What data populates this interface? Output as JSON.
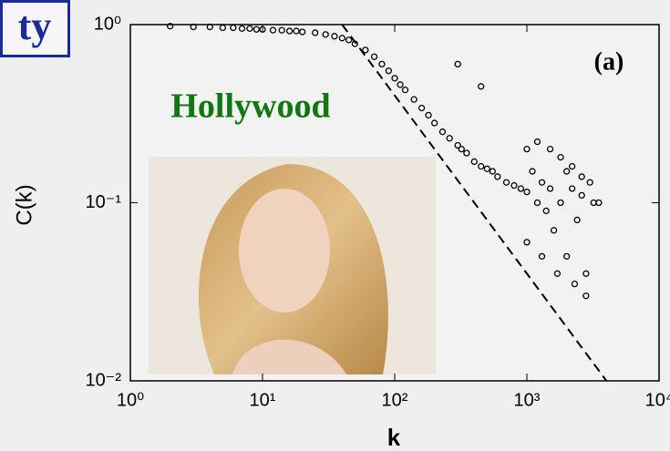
{
  "corner_label": "ty",
  "chart_data": {
    "type": "scatter",
    "x_label": "k",
    "y_label": "C(k)",
    "panel_label": "(a)",
    "annotation": "Hollywood",
    "log_x": true,
    "log_y": true,
    "color": "#000000",
    "xlim": [
      1,
      10000
    ],
    "ylim": [
      0.01,
      1
    ],
    "xticks": [
      {
        "value": 1,
        "label": "10⁰"
      },
      {
        "value": 10,
        "label": "10¹"
      },
      {
        "value": 100,
        "label": "10²"
      },
      {
        "value": 1000,
        "label": "10³"
      },
      {
        "value": 10000,
        "label": "10⁴"
      }
    ],
    "yticks": [
      {
        "value": 0.01,
        "label": "10⁻²"
      },
      {
        "value": 0.1,
        "label": "10⁻¹"
      },
      {
        "value": 1,
        "label": "10⁰"
      }
    ],
    "x": [
      2,
      3,
      4,
      5,
      6,
      7,
      8,
      9,
      10,
      12,
      14,
      16,
      18,
      20,
      25,
      30,
      35,
      40,
      45,
      50,
      60,
      70,
      80,
      90,
      100,
      110,
      120,
      140,
      160,
      180,
      200,
      230,
      260,
      300,
      320,
      350,
      400,
      450,
      500,
      550,
      600,
      700,
      800,
      900,
      1000,
      1000,
      1100,
      1200,
      1300,
      1400,
      1500,
      1600,
      1800,
      2000,
      2000,
      2200,
      2400,
      2600,
      2800,
      3000,
      3200,
      3500,
      1200,
      1500,
      1800,
      2200,
      2600,
      1000,
      1300,
      1700,
      2300,
      2800,
      300,
      450
    ],
    "values": [
      0.98,
      0.97,
      0.97,
      0.96,
      0.96,
      0.95,
      0.95,
      0.94,
      0.94,
      0.93,
      0.93,
      0.92,
      0.92,
      0.91,
      0.9,
      0.88,
      0.86,
      0.84,
      0.82,
      0.78,
      0.72,
      0.66,
      0.6,
      0.55,
      0.5,
      0.46,
      0.43,
      0.38,
      0.34,
      0.31,
      0.28,
      0.25,
      0.23,
      0.21,
      0.2,
      0.19,
      0.17,
      0.16,
      0.155,
      0.15,
      0.14,
      0.13,
      0.125,
      0.12,
      0.115,
      0.2,
      0.15,
      0.1,
      0.13,
      0.09,
      0.12,
      0.07,
      0.1,
      0.15,
      0.05,
      0.12,
      0.08,
      0.11,
      0.04,
      0.13,
      0.1,
      0.1,
      0.22,
      0.2,
      0.18,
      0.16,
      0.14,
      0.06,
      0.05,
      0.04,
      0.035,
      0.03,
      0.6,
      0.45
    ],
    "reference_line": {
      "x": [
        40,
        4000
      ],
      "values": [
        1,
        0.01
      ]
    }
  }
}
